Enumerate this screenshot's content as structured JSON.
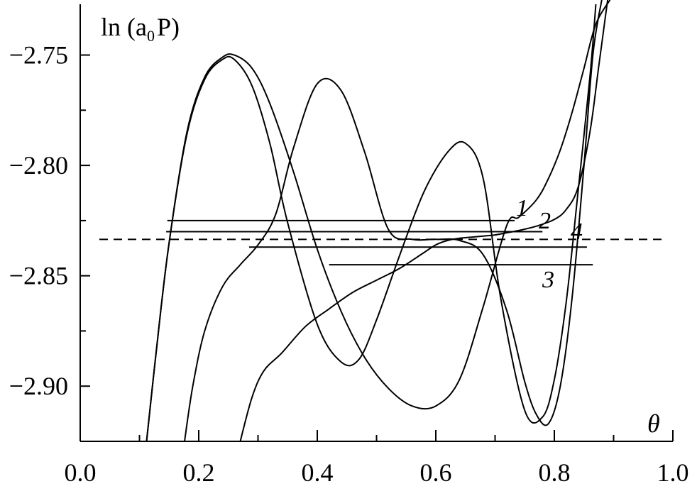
{
  "chart_data": {
    "type": "line",
    "title": "",
    "xlabel": "θ",
    "ylabel_main": "ln (a",
    "ylabel_sub": "0",
    "ylabel_tail": "P)",
    "xlim": [
      0.0,
      1.0
    ],
    "ylim": [
      -2.925,
      -2.727
    ],
    "x_ticks": [
      0.0,
      0.2,
      0.4,
      0.6,
      0.8,
      1.0
    ],
    "x_tick_labels": [
      "0.0",
      "0.2",
      "0.4",
      "0.6",
      "0.8",
      "1.0"
    ],
    "y_ticks": [
      -2.75,
      -2.8,
      -2.85,
      -2.9
    ],
    "y_tick_labels": [
      "−2.75",
      "−2.80",
      "−2.85",
      "−2.90"
    ],
    "grid": false,
    "legend": "none",
    "reference_line": {
      "style": "dashed",
      "y": -2.8335
    },
    "series": [
      {
        "label": "1",
        "x": [
          0.112,
          0.13,
          0.15,
          0.18,
          0.21,
          0.24,
          0.26,
          0.29,
          0.32,
          0.36,
          0.4,
          0.44,
          0.48,
          0.52,
          0.56,
          0.6,
          0.64,
          0.68,
          0.72,
          0.74,
          0.77,
          0.79,
          0.81,
          0.83,
          0.85,
          0.87,
          0.894
        ],
        "y": [
          -2.925,
          -2.88,
          -2.835,
          -2.785,
          -2.76,
          -2.751,
          -2.75,
          -2.756,
          -2.772,
          -2.803,
          -2.838,
          -2.866,
          -2.887,
          -2.901,
          -2.909,
          -2.909,
          -2.897,
          -2.864,
          -2.827,
          -2.8235,
          -2.8155,
          -2.806,
          -2.793,
          -2.776,
          -2.756,
          -2.736,
          -2.725
        ],
        "level": {
          "y": -2.825,
          "x_start": 0.147,
          "x_end": 0.733
        }
      },
      {
        "label": "2",
        "x": [
          0.112,
          0.13,
          0.15,
          0.18,
          0.21,
          0.24,
          0.26,
          0.29,
          0.32,
          0.35,
          0.4,
          0.44,
          0.47,
          0.5,
          0.54,
          0.58,
          0.62,
          0.65,
          0.68,
          0.71,
          0.75,
          0.78,
          0.8,
          0.82,
          0.84,
          0.86,
          0.87
        ],
        "y": [
          -2.925,
          -2.88,
          -2.835,
          -2.786,
          -2.761,
          -2.752,
          -2.752,
          -2.764,
          -2.79,
          -2.826,
          -2.872,
          -2.889,
          -2.888,
          -2.87,
          -2.84,
          -2.812,
          -2.794,
          -2.79,
          -2.806,
          -2.861,
          -2.911,
          -2.914,
          -2.897,
          -2.862,
          -2.812,
          -2.76,
          -2.727
        ],
        "level": {
          "y": -2.83,
          "x_start": 0.145,
          "x_end": 0.78
        }
      },
      {
        "label": "4",
        "x": [
          0.176,
          0.19,
          0.21,
          0.24,
          0.27,
          0.3,
          0.33,
          0.36,
          0.4,
          0.44,
          0.48,
          0.52,
          0.56,
          0.6,
          0.64,
          0.68,
          0.72,
          0.75,
          0.77,
          0.79,
          0.81,
          0.83,
          0.85,
          0.865,
          0.88
        ],
        "y": [
          -2.925,
          -2.9,
          -2.875,
          -2.855,
          -2.845,
          -2.836,
          -2.822,
          -2.792,
          -2.763,
          -2.766,
          -2.794,
          -2.829,
          -2.8335,
          -2.8335,
          -2.834,
          -2.8405,
          -2.866,
          -2.898,
          -2.913,
          -2.917,
          -2.9,
          -2.86,
          -2.8,
          -2.75,
          -2.725
        ],
        "level": {
          "y": -2.837,
          "x_start": 0.285,
          "x_end": 0.855
        }
      },
      {
        "label": "3",
        "x": [
          0.27,
          0.29,
          0.31,
          0.34,
          0.38,
          0.42,
          0.46,
          0.5,
          0.54,
          0.58,
          0.6,
          0.62,
          0.64,
          0.66,
          0.68,
          0.7,
          0.72,
          0.74,
          0.77,
          0.8,
          0.82,
          0.84,
          0.86,
          0.875,
          0.89
        ],
        "y": [
          -2.925,
          -2.905,
          -2.893,
          -2.885,
          -2.873,
          -2.865,
          -2.8575,
          -2.852,
          -2.8465,
          -2.8395,
          -2.836,
          -2.834,
          -2.833,
          -2.8325,
          -2.832,
          -2.8315,
          -2.8305,
          -2.8295,
          -2.8275,
          -2.8245,
          -2.82,
          -2.81,
          -2.785,
          -2.755,
          -2.725
        ],
        "level": {
          "y": -2.845,
          "x_start": 0.42,
          "x_end": 0.865
        }
      }
    ]
  }
}
